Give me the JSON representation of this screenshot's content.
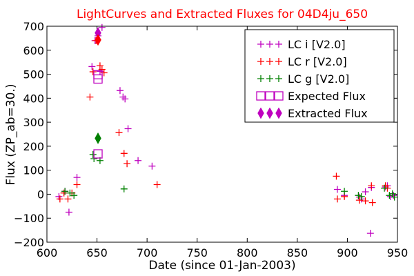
{
  "chart_data": {
    "type": "scatter",
    "title": "LightCurves and Extracted Fluxes for 04D4ju_650",
    "xlabel": "Date (since 01-Jan-2003)",
    "ylabel": "Flux (ZP_ab=30.)",
    "xlim": [
      600,
      950
    ],
    "ylim": [
      -200,
      700
    ],
    "xticks": [
      600,
      650,
      700,
      750,
      800,
      850,
      900,
      950
    ],
    "yticks": [
      -200,
      -100,
      0,
      100,
      200,
      300,
      400,
      500,
      600,
      700
    ],
    "xtick_labels": [
      "600",
      "650",
      "700",
      "750",
      "800",
      "850",
      "900",
      "950"
    ],
    "ytick_labels": [
      "−200",
      "−100",
      "0",
      "100",
      "200",
      "300",
      "400",
      "500",
      "600",
      "700"
    ],
    "grid": false,
    "legend_position": "top-right",
    "colors": {
      "i": "#bf00bf",
      "r": "#ff0000",
      "g": "#008000",
      "title": "#ff0000"
    },
    "series": [
      {
        "name": "LC i [V2.0]",
        "color": "#bf00bf",
        "marker": "plus",
        "points": [
          [
            612,
            -10
          ],
          [
            618,
            12
          ],
          [
            622,
            -75
          ],
          [
            630,
            70
          ],
          [
            645,
            532
          ],
          [
            648,
            640
          ],
          [
            651,
            660
          ],
          [
            653,
            512
          ],
          [
            655,
            695
          ],
          [
            673,
            432
          ],
          [
            676,
            405
          ],
          [
            678,
            397
          ],
          [
            681,
            273
          ],
          [
            691,
            140
          ],
          [
            705,
            117
          ],
          [
            890,
            20
          ],
          [
            897,
            -5
          ],
          [
            912,
            -12
          ],
          [
            914,
            -20
          ],
          [
            918,
            10
          ],
          [
            923,
            -163
          ],
          [
            924,
            28
          ],
          [
            938,
            30
          ],
          [
            940,
            35
          ],
          [
            943,
            -10
          ],
          [
            946,
            -5
          ]
        ]
      },
      {
        "name": "LC r [V2.0]",
        "color": "#ff0000",
        "marker": "plus",
        "points": [
          [
            613,
            -20
          ],
          [
            617,
            5
          ],
          [
            621,
            -20
          ],
          [
            625,
            5
          ],
          [
            630,
            40
          ],
          [
            643,
            405
          ],
          [
            646,
            510
          ],
          [
            649,
            640
          ],
          [
            653,
            535
          ],
          [
            655,
            520
          ],
          [
            657,
            506
          ],
          [
            672,
            257
          ],
          [
            677,
            170
          ],
          [
            680,
            127
          ],
          [
            710,
            40
          ],
          [
            889,
            75
          ],
          [
            890,
            -20
          ],
          [
            897,
            -10
          ],
          [
            912,
            -25
          ],
          [
            918,
            -28
          ],
          [
            924,
            35
          ],
          [
            925,
            -35
          ],
          [
            938,
            35
          ],
          [
            940,
            25
          ]
        ]
      },
      {
        "name": "LC g [V2.0]",
        "color": "#008000",
        "marker": "plus",
        "points": [
          [
            618,
            12
          ],
          [
            623,
            5
          ],
          [
            627,
            -5
          ],
          [
            646,
            165
          ],
          [
            647,
            148
          ],
          [
            653,
            140
          ],
          [
            677,
            22
          ],
          [
            897,
            12
          ],
          [
            911,
            -5
          ],
          [
            914,
            -10
          ],
          [
            937,
            25
          ],
          [
            942,
            -5
          ],
          [
            945,
            2
          ],
          [
            947,
            -12
          ]
        ]
      },
      {
        "name": "Expected Flux",
        "color": "#bf00bf",
        "marker": "square-open",
        "points": [
          [
            651,
            480
          ],
          [
            651,
            498
          ],
          [
            651,
            168
          ]
        ]
      },
      {
        "name": "Extracted Flux",
        "color": "#bf00bf",
        "marker": "diamond",
        "points": [
          [
            651,
            672
          ],
          [
            651,
            643
          ],
          [
            651,
            233
          ]
        ],
        "point_colors": [
          "#bf00bf",
          "#ff0000",
          "#008000"
        ]
      }
    ]
  }
}
